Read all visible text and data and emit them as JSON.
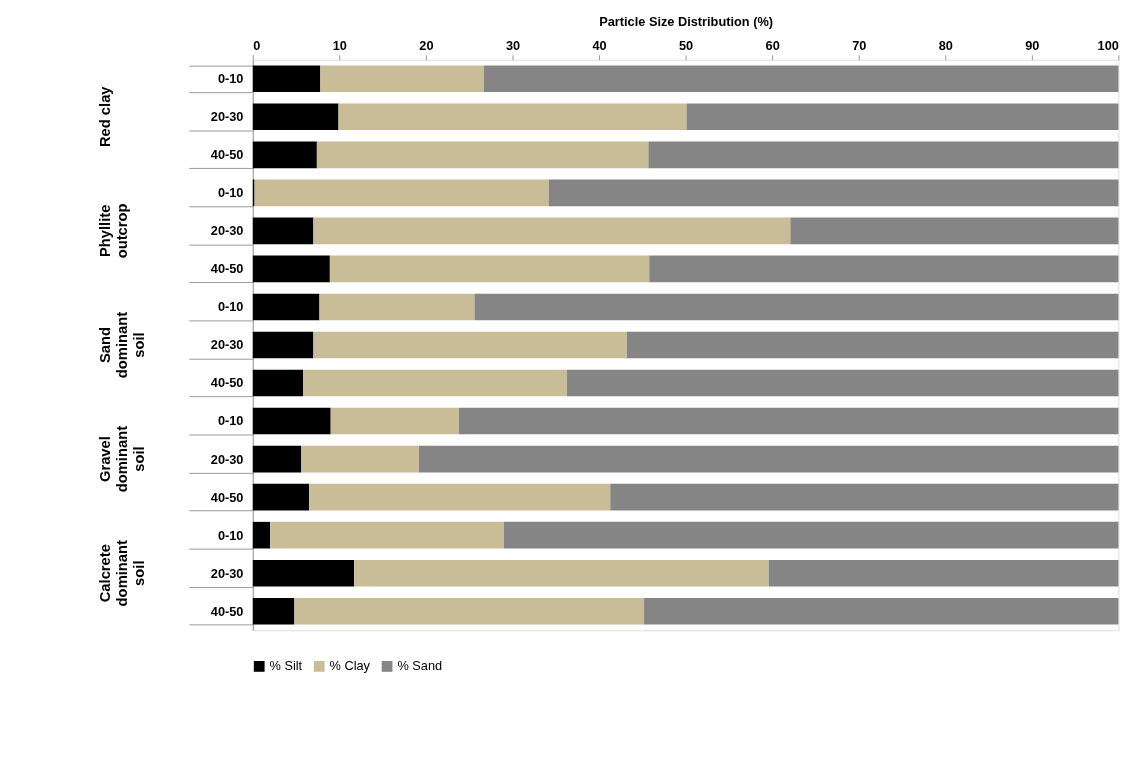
{
  "chart_data": {
    "type": "bar",
    "orientation": "horizontal",
    "stacked": true,
    "xlabel": "Particle Size Distribution (%)",
    "categories": [
      "0-10",
      "20-30",
      "40-50",
      "0-10",
      "20-30",
      "40-50",
      "0-10",
      "20-30",
      "40-50",
      "0-10",
      "20-30",
      "40-50",
      "0-10",
      "20-30",
      "40-50"
    ],
    "series": [
      {
        "name": "% Silt",
        "color": "#000000",
        "values": [
          7.8,
          9.9,
          7.4,
          0.2,
          7.0,
          8.9,
          7.7,
          7.0,
          5.8,
          9.0,
          5.6,
          6.5,
          2.0,
          11.7,
          4.8
        ]
      },
      {
        "name": "% Clay",
        "color": "#c8bd96",
        "values": [
          18.9,
          40.2,
          38.3,
          34.0,
          55.1,
          36.9,
          17.9,
          36.2,
          30.5,
          14.8,
          13.6,
          34.8,
          27.0,
          47.9,
          40.4
        ]
      },
      {
        "name": "% Sand",
        "color": "#858585",
        "values": [
          73.3,
          49.9,
          54.3,
          65.8,
          37.9,
          54.2,
          74.4,
          56.8,
          63.7,
          76.2,
          80.8,
          58.7,
          71.0,
          40.4,
          54.8
        ]
      }
    ],
    "xlim": [
      0,
      100
    ],
    "xticks": [
      0,
      10,
      20,
      30,
      40,
      50,
      60,
      70,
      80,
      90,
      100
    ],
    "grid": false,
    "legend": "bottom",
    "annotations": [
      "Red clay",
      "Phyllite\noutcrop",
      "Sand\ndominant\nsoil",
      "Gravel\ndominant\nsoil",
      "Calcrete\ndominant\nsoil"
    ]
  }
}
